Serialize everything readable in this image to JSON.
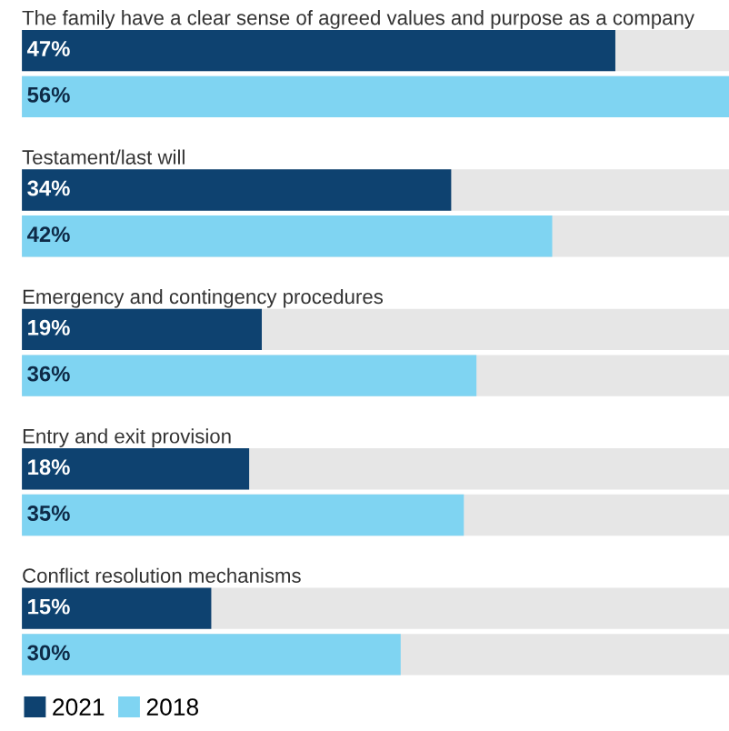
{
  "chart_data": {
    "type": "bar",
    "orientation": "horizontal",
    "categories": [
      "The family have a clear sense of agreed values and purpose as a company",
      "Testament/last will",
      "Emergency and contingency procedures",
      "Entry and exit provision",
      "Conflict resolution mechanisms"
    ],
    "series": [
      {
        "name": "2021",
        "color": "#0e4270",
        "values": [
          47,
          34,
          19,
          18,
          15
        ],
        "value_labels": [
          "47%",
          "34%",
          "19%",
          "18%",
          "15%"
        ]
      },
      {
        "name": "2018",
        "color": "#7fd4f2",
        "values": [
          56,
          42,
          36,
          35,
          30
        ],
        "value_labels": [
          "56%",
          "42%",
          "36%",
          "35%",
          "30%"
        ]
      }
    ],
    "legend": "bottom left"
  }
}
